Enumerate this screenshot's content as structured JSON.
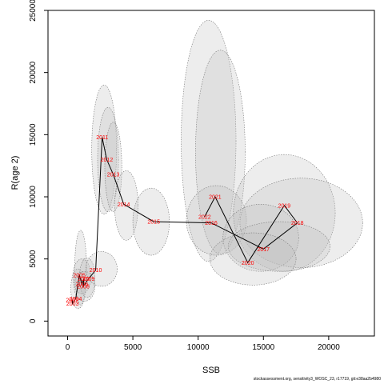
{
  "chart_data": {
    "type": "scatter",
    "title": "",
    "xlabel": "SSB",
    "ylabel": "R(age 2)",
    "xlim": [
      -1500,
      23500
    ],
    "ylim": [
      -1200,
      25000
    ],
    "xticks": [
      0,
      5000,
      10000,
      15000,
      20000
    ],
    "yticks": [
      0,
      5000,
      10000,
      15000,
      20000,
      25000
    ],
    "grid": false,
    "line_color": "#000000",
    "label_color": "#ff0000",
    "ellipse_fill": "#bdbdbd",
    "points": [
      {
        "year": "2002",
        "x": 350,
        "y": 1700
      },
      {
        "year": "2003",
        "x": 380,
        "y": 1400
      },
      {
        "year": "2004",
        "x": 620,
        "y": 1800
      },
      {
        "year": "2005",
        "x": 900,
        "y": 3700
      },
      {
        "year": "2006",
        "x": 1100,
        "y": 3000
      },
      {
        "year": "2007",
        "x": 1250,
        "y": 3400
      },
      {
        "year": "2008",
        "x": 1200,
        "y": 2800
      },
      {
        "year": "2009",
        "x": 1600,
        "y": 3400
      },
      {
        "year": "2010",
        "x": 2150,
        "y": 4100
      },
      {
        "year": "2011",
        "x": 2650,
        "y": 14800
      },
      {
        "year": "2012",
        "x": 3000,
        "y": 13000
      },
      {
        "year": "2013",
        "x": 3500,
        "y": 11800
      },
      {
        "year": "2014",
        "x": 4300,
        "y": 9400
      },
      {
        "year": "2015",
        "x": 6600,
        "y": 8000
      },
      {
        "year": "2016",
        "x": 11000,
        "y": 7900
      },
      {
        "year": "2017",
        "x": 15000,
        "y": 5800
      },
      {
        "year": "2018",
        "x": 17600,
        "y": 7900
      },
      {
        "year": "2019",
        "x": 16600,
        "y": 9300
      },
      {
        "year": "2020",
        "x": 13800,
        "y": 4700
      },
      {
        "year": "2021",
        "x": 11300,
        "y": 10000
      },
      {
        "year": "2022",
        "x": 10500,
        "y": 8400
      }
    ],
    "ellipses": [
      {
        "cx": 1000,
        "cy": 4300,
        "rx": 450,
        "ry": 3000
      },
      {
        "cx": 800,
        "cy": 2600,
        "rx": 550,
        "ry": 1600
      },
      {
        "cx": 1100,
        "cy": 3600,
        "rx": 700,
        "ry": 1400
      },
      {
        "cx": 1500,
        "cy": 3500,
        "rx": 600,
        "ry": 1600
      },
      {
        "cx": 1300,
        "cy": 2800,
        "rx": 800,
        "ry": 1200
      },
      {
        "cx": 2600,
        "cy": 4200,
        "rx": 1200,
        "ry": 1400
      },
      {
        "cx": 2800,
        "cy": 13800,
        "rx": 950,
        "ry": 5200
      },
      {
        "cx": 3100,
        "cy": 13000,
        "rx": 800,
        "ry": 4200
      },
      {
        "cx": 3500,
        "cy": 12400,
        "rx": 650,
        "ry": 3600
      },
      {
        "cx": 4500,
        "cy": 9300,
        "rx": 900,
        "ry": 2800
      },
      {
        "cx": 6400,
        "cy": 8000,
        "rx": 1400,
        "ry": 2700
      },
      {
        "cx": 10800,
        "cy": 14500,
        "rx": 2100,
        "ry": 9700
      },
      {
        "cx": 11700,
        "cy": 13600,
        "rx": 1900,
        "ry": 8200
      },
      {
        "cx": 11400,
        "cy": 8100,
        "rx": 2300,
        "ry": 2800
      },
      {
        "cx": 16600,
        "cy": 8700,
        "rx": 3900,
        "ry": 4700
      },
      {
        "cx": 17900,
        "cy": 7900,
        "rx": 4700,
        "ry": 3600
      },
      {
        "cx": 14800,
        "cy": 6700,
        "rx": 2900,
        "ry": 2700
      },
      {
        "cx": 16200,
        "cy": 6000,
        "rx": 3900,
        "ry": 2000
      },
      {
        "cx": 14200,
        "cy": 5000,
        "rx": 3300,
        "ry": 2100
      }
    ]
  },
  "footer": {
    "text": "stockassessment.org, sensitivity3_WOSC_23, r17719, git:e38aa2b4980"
  }
}
